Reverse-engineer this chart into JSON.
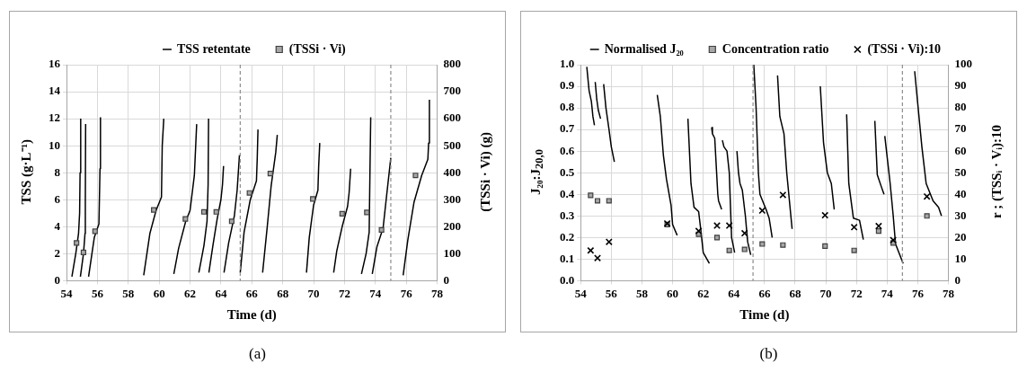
{
  "chart_data": [
    {
      "type": "line",
      "xlabel": "Time (d)",
      "ylabel": "TSS (g·L⁻¹)",
      "y2label": "(TSSi · Vi) (g)",
      "annotations": [
        "(a)"
      ],
      "xlim": [
        54,
        78
      ],
      "xticks": [
        54,
        56,
        58,
        60,
        62,
        64,
        66,
        68,
        70,
        72,
        74,
        76,
        78
      ],
      "ylim": [
        0,
        16
      ],
      "yticks": [
        0,
        2,
        4,
        6,
        8,
        10,
        12,
        14,
        16
      ],
      "y2lim": [
        0,
        800
      ],
      "y2ticks": [
        0,
        100,
        200,
        300,
        400,
        500,
        600,
        700,
        800
      ],
      "grid": true,
      "legend": "top",
      "ref_lines": [
        {
          "axis": "x",
          "value": 65.25,
          "color": "#8c8c8c",
          "line_style": "dashed"
        },
        {
          "axis": "x",
          "value": 75.0,
          "color": "#8c8c8c",
          "line_style": "dashed"
        }
      ],
      "series": [
        {
          "name": "TSS retentate",
          "color": "#000000",
          "marker": "none",
          "x": [
            54.35,
            54.6,
            54.78,
            54.85,
            54.88,
            54.92,
            null,
            54.9,
            55.1,
            55.2,
            55.22,
            55.24,
            null,
            55.43,
            55.8,
            56.1,
            56.17,
            56.2,
            null,
            59.0,
            59.4,
            59.8,
            60.15,
            60.2,
            60.3,
            null,
            60.95,
            61.26,
            61.72,
            62.0,
            62.28,
            62.43,
            null,
            62.57,
            62.9,
            63.1,
            63.17,
            63.2,
            null,
            63.22,
            63.48,
            63.76,
            64.0,
            64.1,
            64.17,
            null,
            64.2,
            64.5,
            64.87,
            65.05,
            65.2,
            null,
            65.25,
            65.5,
            65.9,
            66.3,
            66.35,
            66.4,
            null,
            66.7,
            67.0,
            67.25,
            67.55,
            67.65,
            null,
            69.54,
            69.72,
            70.0,
            70.28,
            70.33,
            70.4,
            null,
            71.3,
            71.5,
            71.85,
            72.2,
            72.3,
            72.4,
            null,
            73.1,
            73.4,
            73.6,
            73.65,
            73.7,
            null,
            73.8,
            74.1,
            74.5,
            74.7,
            75.0,
            null,
            75.8,
            76.1,
            76.5,
            77.0,
            77.4,
            77.45,
            77.5
          ],
          "values": [
            0.3,
            2,
            3.5,
            5,
            8,
            12,
            null,
            0.3,
            2,
            3.5,
            6,
            11.6,
            null,
            0.3,
            3.2,
            4.2,
            8.3,
            12.1,
            null,
            0.4,
            3.5,
            5.2,
            6.2,
            10,
            12,
            null,
            0.5,
            2.4,
            4.4,
            5.2,
            7.8,
            11.6,
            null,
            0.6,
            2.6,
            4.4,
            7.1,
            12,
            null,
            0.6,
            2.6,
            4.6,
            6,
            7.1,
            8.5,
            null,
            0.6,
            2.8,
            4.8,
            6.7,
            9.3,
            null,
            0.6,
            3.6,
            6,
            7.4,
            9,
            11.2,
            null,
            0.6,
            4,
            7,
            9.5,
            10.8,
            null,
            0.6,
            3.2,
            5.6,
            6.7,
            8.5,
            10.2,
            null,
            0.6,
            2.2,
            4,
            5.5,
            6.5,
            8.3,
            null,
            0.5,
            2,
            3.6,
            8,
            12.1,
            null,
            0.5,
            2.5,
            3.9,
            6,
            9.1,
            null,
            0.4,
            3,
            5.8,
            7.8,
            9,
            10.2,
            13.4
          ]
        },
        {
          "name": "(TSSi · Vi)",
          "type": "scatter",
          "axis": "y2",
          "color": "#a6a6a6",
          "marker": "square",
          "x": [
            54.65,
            55.1,
            55.85,
            59.65,
            61.7,
            62.9,
            63.7,
            64.7,
            65.85,
            67.2,
            69.95,
            71.85,
            73.45,
            74.4,
            76.6
          ],
          "values": [
            140,
            105,
            183,
            262,
            229,
            255,
            255,
            220,
            325,
            397,
            303,
            248,
            253,
            188,
            390
          ]
        }
      ]
    },
    {
      "type": "line",
      "xlabel": "Time (d)",
      "ylabel": "J₂₀:J$_{20,0}$",
      "y2label": "r ; (TSSᵢ · Vᵢ):10",
      "annotations": [
        "(b)"
      ],
      "xlim": [
        54,
        78
      ],
      "xticks": [
        54,
        56,
        58,
        60,
        62,
        64,
        66,
        68,
        70,
        72,
        74,
        76,
        78
      ],
      "ylim": [
        0,
        1
      ],
      "yticks": [
        {
          "value": 0,
          "label": "0.0"
        },
        0.1,
        0.2,
        0.3,
        0.4,
        0.5,
        0.6,
        0.7,
        0.8,
        0.9,
        {
          "value": 1,
          "label": "1.0"
        }
      ],
      "y2lim": [
        0,
        100
      ],
      "y2ticks": [
        0,
        10,
        20,
        30,
        40,
        50,
        60,
        70,
        80,
        90,
        100
      ],
      "grid": true,
      "legend": "top",
      "ref_lines": [
        {
          "axis": "x",
          "value": 65.25,
          "color": "#8c8c8c",
          "line_style": "dashed"
        },
        {
          "axis": "x",
          "value": 75.0,
          "color": "#8c8c8c",
          "line_style": "dashed"
        }
      ],
      "series": [
        {
          "name": "Normalised J₂₀",
          "color": "#000000",
          "marker": "none",
          "x": [
            54.4,
            54.55,
            54.7,
            54.8,
            54.9,
            null,
            54.95,
            55.05,
            55.15,
            55.3,
            null,
            55.5,
            55.65,
            55.85,
            56.0,
            56.2,
            null,
            59.0,
            59.2,
            59.4,
            59.6,
            59.9,
            60.0,
            60.3,
            null,
            61.0,
            61.2,
            61.4,
            61.7,
            61.85,
            62.0,
            62.4,
            null,
            62.55,
            62.6,
            62.75,
            62.95,
            63.0,
            63.2,
            null,
            63.25,
            63.35,
            63.55,
            63.7,
            63.85,
            64.05,
            null,
            64.2,
            64.3,
            64.4,
            64.55,
            64.75,
            64.9,
            65.1,
            null,
            65.3,
            65.45,
            65.6,
            65.7,
            66.1,
            66.3,
            66.5,
            null,
            66.85,
            67.0,
            67.27,
            67.45,
            67.8,
            null,
            69.64,
            69.85,
            70.1,
            70.36,
            70.55,
            null,
            71.36,
            71.5,
            71.8,
            72.2,
            72.45,
            null,
            73.2,
            73.36,
            73.6,
            73.8,
            null,
            73.85,
            74.2,
            74.4,
            74.55,
            75.05,
            null,
            75.8,
            76.0,
            76.27,
            76.55,
            77.0,
            77.36,
            77.55
          ],
          "values": [
            0.99,
            0.88,
            0.83,
            0.76,
            0.72,
            null,
            0.92,
            0.84,
            0.79,
            0.75,
            null,
            0.91,
            0.8,
            0.7,
            0.62,
            0.55,
            null,
            0.86,
            0.76,
            0.58,
            0.47,
            0.35,
            0.26,
            0.21,
            null,
            0.75,
            0.45,
            0.34,
            0.32,
            0.23,
            0.13,
            0.08,
            null,
            0.71,
            0.68,
            0.66,
            0.4,
            0.37,
            0.33,
            null,
            0.65,
            0.62,
            0.6,
            0.5,
            0.2,
            0.13,
            null,
            0.6,
            0.5,
            0.45,
            0.42,
            0.3,
            0.18,
            0.12,
            null,
            1.0,
            0.8,
            0.5,
            0.4,
            0.33,
            0.29,
            0.2,
            null,
            0.95,
            0.76,
            0.68,
            0.5,
            0.24,
            null,
            0.9,
            0.64,
            0.5,
            0.45,
            0.33,
            null,
            0.77,
            0.45,
            0.29,
            0.28,
            0.19,
            null,
            0.74,
            0.49,
            0.44,
            0.4,
            null,
            0.67,
            0.45,
            0.3,
            0.17,
            0.08,
            null,
            0.97,
            0.82,
            0.62,
            0.45,
            0.37,
            0.34,
            0.3
          ]
        },
        {
          "name": "Concentration ratio",
          "type": "scatter",
          "axis": "y2",
          "color": "#a6a6a6",
          "marker": "square",
          "x": [
            54.65,
            55.1,
            55.85,
            59.65,
            61.7,
            62.9,
            63.7,
            64.7,
            65.85,
            67.2,
            69.95,
            71.85,
            73.45,
            74.4,
            76.6
          ],
          "values": [
            39.5,
            37,
            37,
            26,
            21.5,
            20,
            14,
            14.5,
            17,
            16.5,
            16,
            14,
            23,
            17.5,
            30
          ]
        },
        {
          "name": "(TSSi · Vi):10",
          "type": "scatter",
          "axis": "y2",
          "color": "#000000",
          "marker": "cross",
          "x": [
            54.65,
            55.1,
            55.85,
            59.65,
            61.7,
            62.9,
            63.7,
            64.7,
            65.85,
            67.2,
            69.95,
            71.85,
            73.45,
            74.4,
            76.6
          ],
          "values": [
            14,
            10.5,
            18,
            26.5,
            23,
            25.5,
            25.5,
            22,
            32.5,
            39.7,
            30.3,
            24.8,
            25.3,
            18.8,
            39
          ]
        }
      ]
    }
  ]
}
